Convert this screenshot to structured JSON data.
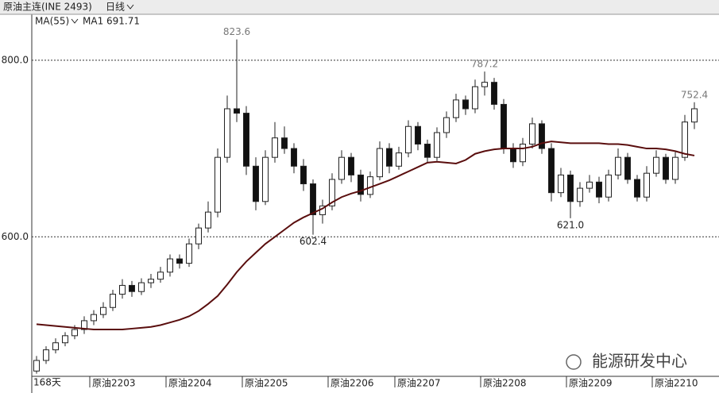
{
  "header": {
    "title": "原油主连(INE 2493)",
    "period": "日线"
  },
  "chart_data": {
    "type": "candlestick",
    "indicator": "MA(55)",
    "ma_caption": "MA1 691.71",
    "days_label": "168天",
    "watermark": "能源研发中心",
    "ylim": [
      442,
      852
    ],
    "yticks": [
      {
        "value": 600,
        "label": "600.0"
      },
      {
        "value": 800,
        "label": "800.0"
      }
    ],
    "grid": true,
    "up_color": "#ffffff",
    "down_color": "#111111",
    "categories": [
      null,
      null,
      null,
      null,
      null,
      null,
      "原油2203",
      null,
      null,
      null,
      null,
      null,
      null,
      null,
      "原油2204",
      null,
      null,
      null,
      null,
      null,
      null,
      null,
      "原油2205",
      null,
      null,
      null,
      null,
      null,
      null,
      null,
      null,
      "原油2206",
      null,
      null,
      null,
      null,
      null,
      null,
      "原油2207",
      null,
      null,
      null,
      null,
      null,
      null,
      null,
      null,
      "原油2208",
      null,
      null,
      null,
      null,
      null,
      null,
      null,
      null,
      "原油2209",
      null,
      null,
      null,
      null,
      null,
      null,
      null,
      null,
      "原油2210",
      null,
      null,
      null,
      null
    ],
    "candles": [
      [
        448,
        465,
        445,
        460
      ],
      [
        460,
        476,
        456,
        472
      ],
      [
        472,
        485,
        468,
        480
      ],
      [
        480,
        492,
        476,
        488
      ],
      [
        488,
        500,
        484,
        495
      ],
      [
        495,
        510,
        490,
        505
      ],
      [
        505,
        517,
        500,
        512
      ],
      [
        512,
        526,
        508,
        520
      ],
      [
        520,
        540,
        516,
        535
      ],
      [
        535,
        552,
        530,
        545
      ],
      [
        545,
        550,
        532,
        538
      ],
      [
        538,
        553,
        534,
        548
      ],
      [
        548,
        558,
        542,
        552
      ],
      [
        552,
        566,
        548,
        560
      ],
      [
        560,
        580,
        555,
        575
      ],
      [
        575,
        580,
        564,
        570
      ],
      [
        570,
        598,
        566,
        592
      ],
      [
        592,
        615,
        586,
        610
      ],
      [
        610,
        640,
        605,
        628
      ],
      [
        628,
        700,
        622,
        690
      ],
      [
        690,
        760,
        684,
        745
      ],
      [
        745,
        823.6,
        730,
        740
      ],
      [
        740,
        748,
        670,
        680
      ],
      [
        680,
        690,
        630,
        640
      ],
      [
        640,
        698,
        636,
        690
      ],
      [
        690,
        730,
        684,
        712
      ],
      [
        712,
        725,
        694,
        700
      ],
      [
        700,
        706,
        672,
        680
      ],
      [
        680,
        688,
        652,
        660
      ],
      [
        660,
        665,
        602.4,
        625
      ],
      [
        625,
        642,
        615,
        635
      ],
      [
        635,
        672,
        630,
        665
      ],
      [
        665,
        698,
        660,
        690
      ],
      [
        690,
        695,
        662,
        670
      ],
      [
        670,
        676,
        640,
        648
      ],
      [
        648,
        674,
        644,
        668
      ],
      [
        668,
        708,
        664,
        700
      ],
      [
        700,
        706,
        672,
        680
      ],
      [
        680,
        702,
        676,
        695
      ],
      [
        695,
        732,
        690,
        725
      ],
      [
        725,
        730,
        698,
        705
      ],
      [
        705,
        710,
        684,
        690
      ],
      [
        690,
        724,
        686,
        718
      ],
      [
        718,
        742,
        712,
        735
      ],
      [
        735,
        762,
        730,
        755
      ],
      [
        755,
        760,
        738,
        745
      ],
      [
        745,
        778,
        740,
        770
      ],
      [
        770,
        787.2,
        760,
        775
      ],
      [
        775,
        780,
        744,
        750
      ],
      [
        750,
        756,
        694,
        700
      ],
      [
        700,
        706,
        678,
        685
      ],
      [
        685,
        712,
        680,
        705
      ],
      [
        705,
        735,
        700,
        728
      ],
      [
        728,
        732,
        694,
        700
      ],
      [
        700,
        706,
        640,
        650
      ],
      [
        650,
        678,
        645,
        670
      ],
      [
        670,
        675,
        621,
        640
      ],
      [
        640,
        662,
        634,
        655
      ],
      [
        655,
        670,
        650,
        662
      ],
      [
        662,
        668,
        638,
        645
      ],
      [
        645,
        676,
        640,
        670
      ],
      [
        670,
        700,
        665,
        690
      ],
      [
        690,
        695,
        660,
        665
      ],
      [
        665,
        670,
        640,
        645
      ],
      [
        645,
        680,
        640,
        672
      ],
      [
        672,
        698,
        668,
        690
      ],
      [
        690,
        694,
        660,
        665
      ],
      [
        665,
        696,
        660,
        690
      ],
      [
        690,
        738,
        686,
        730
      ],
      [
        730,
        752.4,
        722,
        745
      ]
    ],
    "ma": {
      "color": "#5a0e0e",
      "values": [
        501,
        500,
        499,
        498,
        497,
        496,
        495,
        495,
        495,
        495,
        496,
        497,
        498,
        500,
        503,
        506,
        510,
        516,
        524,
        533,
        546,
        560,
        572,
        582,
        592,
        600,
        608,
        616,
        622,
        627,
        632,
        639,
        645,
        649,
        652,
        656,
        660,
        664,
        669,
        674,
        679,
        684,
        685,
        684,
        683,
        687,
        694,
        697,
        699,
        700,
        700,
        700,
        702,
        706,
        708,
        707,
        706,
        706,
        706,
        706,
        705,
        705,
        704,
        702,
        700,
        700,
        699,
        697,
        694,
        692
      ]
    },
    "annotations": [
      {
        "text": "823.6",
        "value": 823.6
      },
      {
        "text": "787.2",
        "value": 787.2
      },
      {
        "text": "752.4",
        "value": 752.4
      },
      {
        "text": "602.4",
        "value": 602.4
      },
      {
        "text": "621.0",
        "value": 621
      }
    ]
  }
}
